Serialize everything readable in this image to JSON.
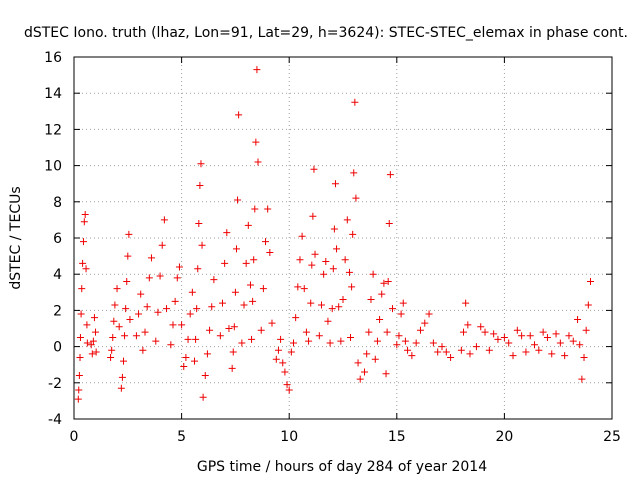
{
  "chart_data": {
    "type": "scatter",
    "title": "dSTEC Iono. truth (lhaz, Lon=91, Lat=29, h=3624): STEC-STEC_elemax in phase cont.",
    "xlabel": "GPS time / hours of day 284 of year 2014",
    "ylabel": "dSTEC  / TECUs",
    "xlim": [
      0,
      25
    ],
    "ylim": [
      -4,
      16
    ],
    "x_ticks": [
      0,
      5,
      10,
      15,
      20,
      25
    ],
    "y_ticks": [
      -4,
      -2,
      0,
      2,
      4,
      6,
      8,
      10,
      12,
      14,
      16
    ],
    "grid": true,
    "marker": "plus",
    "series_color": "#ee0000",
    "series": [
      {
        "x": [
          0.2,
          0.22,
          0.25,
          0.28,
          0.3,
          0.33,
          0.36,
          0.4,
          0.44,
          0.48,
          0.52,
          0.56,
          0.6,
          0.62,
          0.8,
          0.85,
          0.9,
          0.95,
          1.0,
          1.03,
          1.7,
          1.75,
          1.8,
          1.85,
          1.9,
          2.0,
          2.1,
          2.2,
          2.25,
          2.3,
          2.35,
          2.4,
          2.45,
          2.5,
          2.55,
          2.6,
          2.9,
          3.0,
          3.1,
          3.2,
          3.3,
          3.4,
          3.5,
          3.6,
          3.8,
          3.9,
          4.0,
          4.1,
          4.2,
          4.3,
          4.5,
          4.6,
          4.7,
          4.8,
          4.9,
          5.0,
          5.1,
          5.2,
          5.3,
          5.4,
          5.5,
          5.6,
          5.65,
          5.7,
          5.75,
          5.8,
          5.85,
          5.9,
          5.95,
          6.0,
          6.1,
          6.2,
          6.3,
          6.4,
          6.5,
          6.8,
          6.9,
          7.0,
          7.1,
          7.2,
          7.35,
          7.4,
          7.45,
          7.5,
          7.55,
          7.6,
          7.65,
          7.8,
          7.9,
          8.0,
          8.1,
          8.2,
          8.25,
          8.3,
          8.35,
          8.4,
          8.45,
          8.5,
          8.55,
          8.7,
          8.8,
          8.9,
          9.0,
          9.1,
          9.2,
          9.4,
          9.5,
          9.6,
          9.7,
          9.8,
          9.9,
          10.0,
          10.1,
          10.2,
          10.3,
          10.4,
          10.5,
          10.6,
          10.7,
          10.8,
          10.9,
          11.0,
          11.05,
          11.1,
          11.15,
          11.2,
          11.4,
          11.5,
          11.6,
          11.7,
          11.8,
          11.9,
          12.0,
          12.05,
          12.1,
          12.15,
          12.2,
          12.3,
          12.4,
          12.5,
          12.6,
          12.7,
          12.8,
          12.85,
          12.9,
          12.95,
          13.0,
          13.05,
          13.1,
          13.2,
          13.3,
          13.5,
          13.6,
          13.7,
          13.8,
          13.9,
          14.0,
          14.1,
          14.2,
          14.3,
          14.4,
          14.5,
          14.55,
          14.6,
          14.65,
          14.7,
          14.8,
          15.0,
          15.1,
          15.2,
          15.3,
          15.4,
          15.5,
          15.7,
          15.9,
          16.1,
          16.3,
          16.5,
          16.7,
          16.9,
          17.1,
          17.3,
          17.5,
          18.0,
          18.1,
          18.2,
          18.3,
          18.4,
          18.7,
          18.9,
          19.1,
          19.3,
          19.5,
          19.7,
          20.0,
          20.2,
          20.4,
          20.6,
          20.8,
          21.0,
          21.2,
          21.4,
          21.6,
          21.8,
          22.0,
          22.2,
          22.4,
          22.6,
          22.8,
          23.0,
          23.2,
          23.4,
          23.5,
          23.6,
          23.7,
          23.8,
          23.9,
          24.0
        ],
        "y": [
          -2.9,
          -2.4,
          -1.6,
          -0.6,
          0.5,
          1.8,
          3.2,
          4.6,
          5.8,
          6.9,
          7.3,
          4.3,
          1.2,
          0.2,
          0.1,
          -0.4,
          0.3,
          1.6,
          0.8,
          -0.3,
          -0.6,
          -0.2,
          0.5,
          1.4,
          2.3,
          3.2,
          1.1,
          -2.3,
          -1.7,
          -0.8,
          0.6,
          2.1,
          3.6,
          5.0,
          6.2,
          1.5,
          0.6,
          1.8,
          2.9,
          -0.2,
          0.8,
          2.2,
          3.8,
          4.9,
          0.3,
          1.9,
          3.9,
          5.6,
          7.0,
          2.1,
          0.1,
          1.2,
          2.5,
          3.8,
          4.4,
          1.2,
          -1.1,
          -0.6,
          0.4,
          1.8,
          3.0,
          -0.8,
          0.4,
          2.1,
          4.3,
          6.8,
          8.9,
          10.1,
          5.6,
          -2.8,
          -1.6,
          -0.4,
          0.9,
          2.2,
          3.7,
          0.6,
          2.4,
          4.6,
          6.3,
          1.0,
          -1.2,
          -0.3,
          1.1,
          3.0,
          5.4,
          8.1,
          12.8,
          0.2,
          2.3,
          4.6,
          6.7,
          3.4,
          0.4,
          2.5,
          4.8,
          7.6,
          11.3,
          15.3,
          10.2,
          0.9,
          3.2,
          5.8,
          7.6,
          5.2,
          1.3,
          -0.7,
          -0.2,
          0.4,
          -0.9,
          -1.4,
          -2.1,
          -2.4,
          -0.3,
          0.2,
          1.6,
          3.3,
          4.8,
          6.1,
          3.2,
          0.8,
          0.3,
          2.4,
          4.5,
          7.2,
          9.8,
          5.1,
          0.6,
          2.3,
          4.0,
          4.7,
          1.4,
          0.2,
          2.1,
          4.3,
          6.5,
          9.0,
          5.4,
          2.2,
          0.3,
          2.6,
          4.8,
          7.0,
          4.1,
          0.5,
          3.3,
          6.2,
          9.6,
          13.5,
          8.2,
          -0.9,
          -1.8,
          -1.4,
          -0.4,
          0.8,
          2.6,
          4.0,
          -0.7,
          0.3,
          1.5,
          2.9,
          3.5,
          -1.5,
          0.8,
          3.6,
          6.8,
          9.5,
          2.1,
          0.1,
          0.6,
          1.8,
          2.4,
          0.3,
          -0.2,
          -0.5,
          0.2,
          0.9,
          1.3,
          1.8,
          0.2,
          -0.3,
          0.0,
          -0.3,
          -0.6,
          -0.2,
          0.8,
          2.4,
          1.2,
          -0.4,
          0.0,
          1.1,
          0.8,
          -0.2,
          0.7,
          0.4,
          0.5,
          0.2,
          -0.5,
          0.9,
          0.6,
          -0.3,
          0.6,
          0.1,
          -0.2,
          0.8,
          0.5,
          -0.4,
          0.7,
          0.2,
          -0.5,
          0.6,
          0.3,
          1.5,
          0.1,
          -1.8,
          -0.6,
          0.9,
          2.3,
          3.6
        ]
      }
    ]
  }
}
